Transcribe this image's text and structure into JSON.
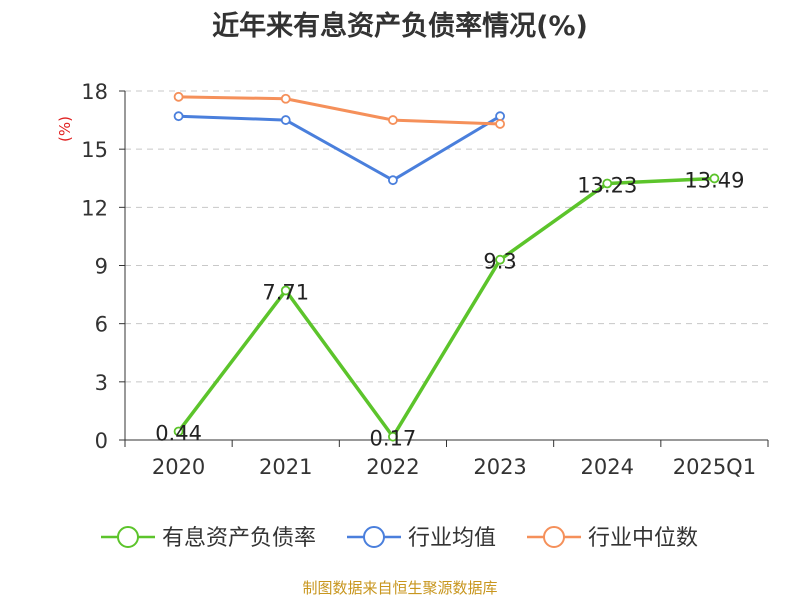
{
  "chart_data": {
    "type": "line",
    "title": "近年来有息资产负债率情况(%)",
    "ylabel": "(%)",
    "xlabel": "",
    "categories": [
      "2020",
      "2021",
      "2022",
      "2023",
      "2024",
      "2025Q1"
    ],
    "ylim": [
      0,
      18
    ],
    "yticks": [
      0,
      3,
      6,
      9,
      12,
      15,
      18
    ],
    "grid": true,
    "legend_position": "bottom",
    "series": [
      {
        "name": "有息资产负债率",
        "color": "#5cc42b",
        "values": [
          0.44,
          7.71,
          0.17,
          9.3,
          13.23,
          13.49
        ],
        "data_labels": [
          "0.44",
          "7.71",
          "0.17",
          "9.3",
          "13.23",
          "13.49"
        ]
      },
      {
        "name": "行业均值",
        "color": "#4a7fdc",
        "values": [
          16.7,
          16.5,
          13.4,
          16.7,
          null,
          null
        ]
      },
      {
        "name": "行业中位数",
        "color": "#f5905a",
        "values": [
          17.7,
          17.6,
          16.5,
          16.3,
          null,
          null
        ]
      }
    ]
  },
  "source_note": "制图数据来自恒生聚源数据库"
}
